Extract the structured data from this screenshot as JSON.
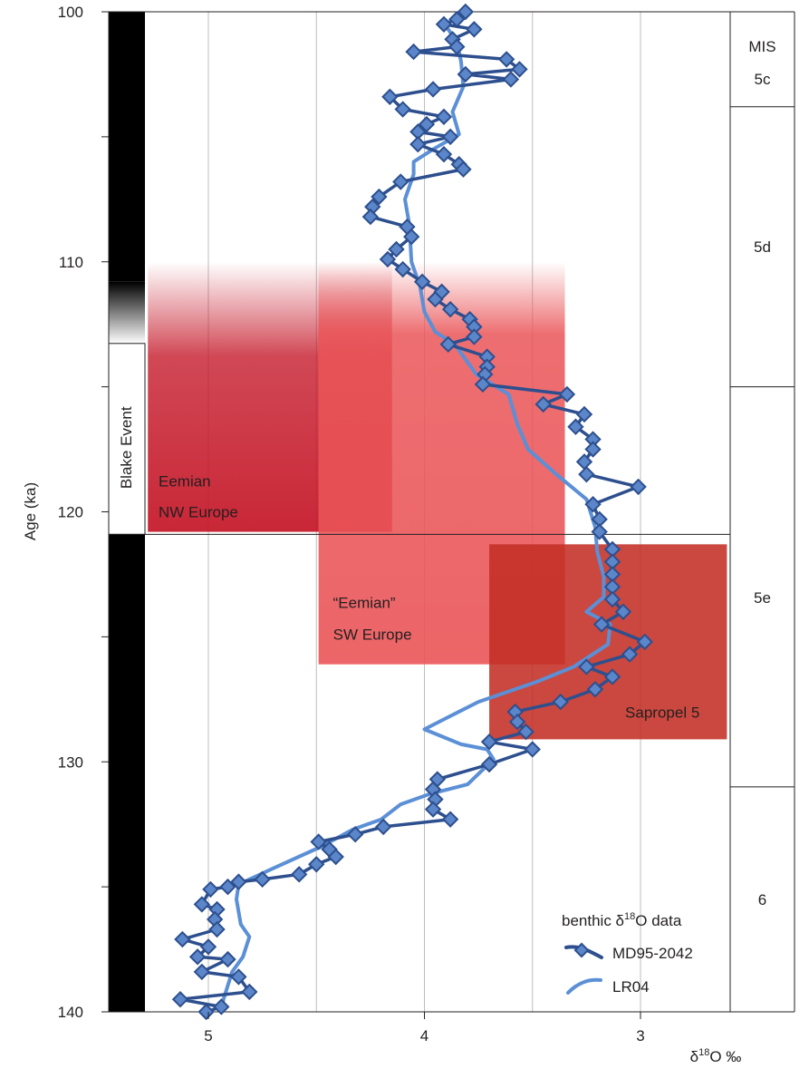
{
  "chart_data": {
    "type": "line",
    "xlabel": "δ18O ‰",
    "xlabel_parts": {
      "delta": "δ",
      "sup": "18",
      "rest": "O ‰"
    },
    "ylabel": "Age (ka)",
    "xlim": [
      5.46,
      2.6
    ],
    "x_reversed": true,
    "ylim": [
      100,
      140
    ],
    "y_inverted": true,
    "xticks": [
      5,
      4,
      3
    ],
    "xtick_labels": [
      "5",
      "4",
      "3"
    ],
    "yticks": [
      100,
      110,
      120,
      130,
      140
    ],
    "ytick_labels": [
      "100",
      "110",
      "120",
      "130",
      "140"
    ],
    "y_minor_ticks": [
      105,
      115,
      125,
      135
    ],
    "grid": "vertical lines at 5.0, 4.5, 4.0, 3.5, 3.0",
    "legend": {
      "position": "bottom-right",
      "title": "benthic δ18O data",
      "title_parts": {
        "pre": "benthic ",
        "delta": "δ",
        "sup": "18",
        "rest": "O data"
      }
    },
    "series": [
      {
        "name": "MD95-2042",
        "color": "#2d4f8e",
        "marker": "diamond",
        "marker_fill": "#5b86c9",
        "points": [
          [
            3.81,
            100.0
          ],
          [
            3.85,
            100.3
          ],
          [
            3.91,
            100.5
          ],
          [
            3.77,
            100.7
          ],
          [
            3.87,
            101.1
          ],
          [
            3.85,
            101.4
          ],
          [
            4.05,
            101.6
          ],
          [
            3.62,
            101.9
          ],
          [
            3.56,
            102.3
          ],
          [
            3.81,
            102.5
          ],
          [
            3.6,
            102.7
          ],
          [
            3.96,
            103.1
          ],
          [
            4.16,
            103.4
          ],
          [
            4.1,
            103.9
          ],
          [
            3.91,
            104.2
          ],
          [
            3.99,
            104.5
          ],
          [
            4.03,
            104.8
          ],
          [
            3.88,
            105.0
          ],
          [
            4.03,
            105.3
          ],
          [
            3.91,
            105.7
          ],
          [
            3.84,
            106.1
          ],
          [
            3.82,
            106.3
          ],
          [
            4.11,
            106.8
          ],
          [
            4.21,
            107.4
          ],
          [
            4.24,
            107.8
          ],
          [
            4.25,
            108.2
          ],
          [
            4.08,
            108.6
          ],
          [
            4.06,
            109.0
          ],
          [
            4.13,
            109.5
          ],
          [
            4.17,
            109.9
          ],
          [
            4.1,
            110.3
          ],
          [
            4.01,
            110.8
          ],
          [
            3.92,
            111.2
          ],
          [
            3.95,
            111.5
          ],
          [
            3.88,
            111.9
          ],
          [
            3.79,
            112.3
          ],
          [
            3.77,
            112.6
          ],
          [
            3.77,
            113.0
          ],
          [
            3.89,
            113.3
          ],
          [
            3.71,
            113.8
          ],
          [
            3.71,
            114.2
          ],
          [
            3.72,
            114.5
          ],
          [
            3.73,
            114.9
          ],
          [
            3.34,
            115.3
          ],
          [
            3.45,
            115.7
          ],
          [
            3.26,
            116.1
          ],
          [
            3.3,
            116.6
          ],
          [
            3.22,
            117.1
          ],
          [
            3.22,
            117.5
          ],
          [
            3.26,
            118.0
          ],
          [
            3.25,
            118.5
          ],
          [
            3.01,
            119.0
          ],
          [
            3.22,
            119.7
          ],
          [
            3.19,
            120.3
          ],
          [
            3.19,
            120.8
          ],
          [
            3.13,
            121.5
          ],
          [
            3.13,
            122.0
          ],
          [
            3.13,
            122.5
          ],
          [
            3.13,
            123.0
          ],
          [
            3.13,
            123.5
          ],
          [
            3.08,
            124.0
          ],
          [
            3.18,
            124.5
          ],
          [
            2.98,
            125.2
          ],
          [
            3.05,
            125.7
          ],
          [
            3.25,
            126.2
          ],
          [
            3.13,
            126.6
          ],
          [
            3.21,
            127.1
          ],
          [
            3.37,
            127.6
          ],
          [
            3.58,
            128.0
          ],
          [
            3.57,
            128.4
          ],
          [
            3.53,
            128.8
          ],
          [
            3.7,
            129.2
          ],
          [
            3.5,
            129.5
          ],
          [
            3.7,
            130.1
          ],
          [
            3.94,
            130.7
          ],
          [
            3.96,
            131.1
          ],
          [
            3.95,
            131.5
          ],
          [
            3.96,
            131.9
          ],
          [
            3.88,
            132.3
          ],
          [
            4.19,
            132.6
          ],
          [
            4.32,
            132.9
          ],
          [
            4.49,
            133.2
          ],
          [
            4.44,
            133.5
          ],
          [
            4.41,
            133.8
          ],
          [
            4.5,
            134.1
          ],
          [
            4.58,
            134.5
          ],
          [
            4.75,
            134.7
          ],
          [
            4.86,
            134.8
          ],
          [
            4.91,
            135.0
          ],
          [
            4.99,
            135.1
          ],
          [
            5.03,
            135.7
          ],
          [
            4.96,
            135.9
          ],
          [
            4.97,
            136.3
          ],
          [
            4.96,
            136.7
          ],
          [
            5.12,
            137.1
          ],
          [
            5.0,
            137.4
          ],
          [
            5.05,
            137.8
          ],
          [
            4.91,
            137.9
          ],
          [
            5.03,
            138.4
          ],
          [
            4.86,
            138.6
          ],
          [
            4.81,
            139.2
          ],
          [
            5.13,
            139.5
          ],
          [
            4.94,
            139.8
          ],
          [
            5.01,
            140.0
          ]
        ]
      },
      {
        "name": "LR04",
        "color": "#5b8fd6",
        "points": [
          [
            3.89,
            100.7
          ],
          [
            3.85,
            101.2
          ],
          [
            3.83,
            102.0
          ],
          [
            3.82,
            103.0
          ],
          [
            3.87,
            104.0
          ],
          [
            3.84,
            104.9
          ],
          [
            3.96,
            105.5
          ],
          [
            4.05,
            106.0
          ],
          [
            4.05,
            106.5
          ],
          [
            4.09,
            107.5
          ],
          [
            4.07,
            108.5
          ],
          [
            4.06,
            110.0
          ],
          [
            4.02,
            111.0
          ],
          [
            4.0,
            112.0
          ],
          [
            3.95,
            112.8
          ],
          [
            3.86,
            113.3
          ],
          [
            3.76,
            114.5
          ],
          [
            3.61,
            115.3
          ],
          [
            3.57,
            116.5
          ],
          [
            3.52,
            117.5
          ],
          [
            3.39,
            118.5
          ],
          [
            3.25,
            119.5
          ],
          [
            3.21,
            120.6
          ],
          [
            3.2,
            121.6
          ],
          [
            3.17,
            122.6
          ],
          [
            3.17,
            123.4
          ],
          [
            3.25,
            124.0
          ],
          [
            3.14,
            124.5
          ],
          [
            3.15,
            125.3
          ],
          [
            3.31,
            126.2
          ],
          [
            3.48,
            126.8
          ],
          [
            3.75,
            127.6
          ],
          [
            3.91,
            128.3
          ],
          [
            4.0,
            128.7
          ],
          [
            3.83,
            129.3
          ],
          [
            3.71,
            129.5
          ],
          [
            3.68,
            129.9
          ],
          [
            3.8,
            130.9
          ],
          [
            3.98,
            131.3
          ],
          [
            4.11,
            131.7
          ],
          [
            4.2,
            132.3
          ],
          [
            4.33,
            132.7
          ],
          [
            4.48,
            133.4
          ],
          [
            4.71,
            134.3
          ],
          [
            4.86,
            134.9
          ],
          [
            4.87,
            135.5
          ],
          [
            4.85,
            136.5
          ],
          [
            4.81,
            137.0
          ],
          [
            4.84,
            137.8
          ],
          [
            4.89,
            138.4
          ],
          [
            4.93,
            139.5
          ],
          [
            4.94,
            140.0
          ]
        ]
      }
    ],
    "shaded_regions": [
      {
        "label_lines": [
          "Eemian",
          "NW Europe"
        ],
        "x": [
          5.28,
          4.15
        ],
        "y": [
          110,
          120.8
        ],
        "color": "#c41425",
        "fade_top": true
      },
      {
        "label_lines": [
          "“Eemian”",
          "SW Europe"
        ],
        "x": [
          4.49,
          3.35
        ],
        "y": [
          110,
          126.1
        ],
        "color": "#ea5457",
        "fade_top": true
      },
      {
        "label_lines": [
          "Sapropel 5"
        ],
        "x": [
          3.7,
          2.6
        ],
        "y": [
          121.3,
          129.1
        ],
        "color": "#c32f24",
        "fade_top": false
      }
    ],
    "boundary_line_age": 120.9,
    "blake_event": {
      "label": "Blake Event",
      "age_start": 110.8,
      "age_end": 120.9
    },
    "mis": {
      "header": "MIS",
      "stages": [
        {
          "label": "5c",
          "from": 100,
          "to": 103.8
        },
        {
          "label": "5d",
          "from": 103.8,
          "to": 115.0
        },
        {
          "label": "5e",
          "from": 115.0,
          "to": 131.0
        },
        {
          "label": "6",
          "from": 131.0,
          "to": 140.0
        }
      ]
    }
  }
}
